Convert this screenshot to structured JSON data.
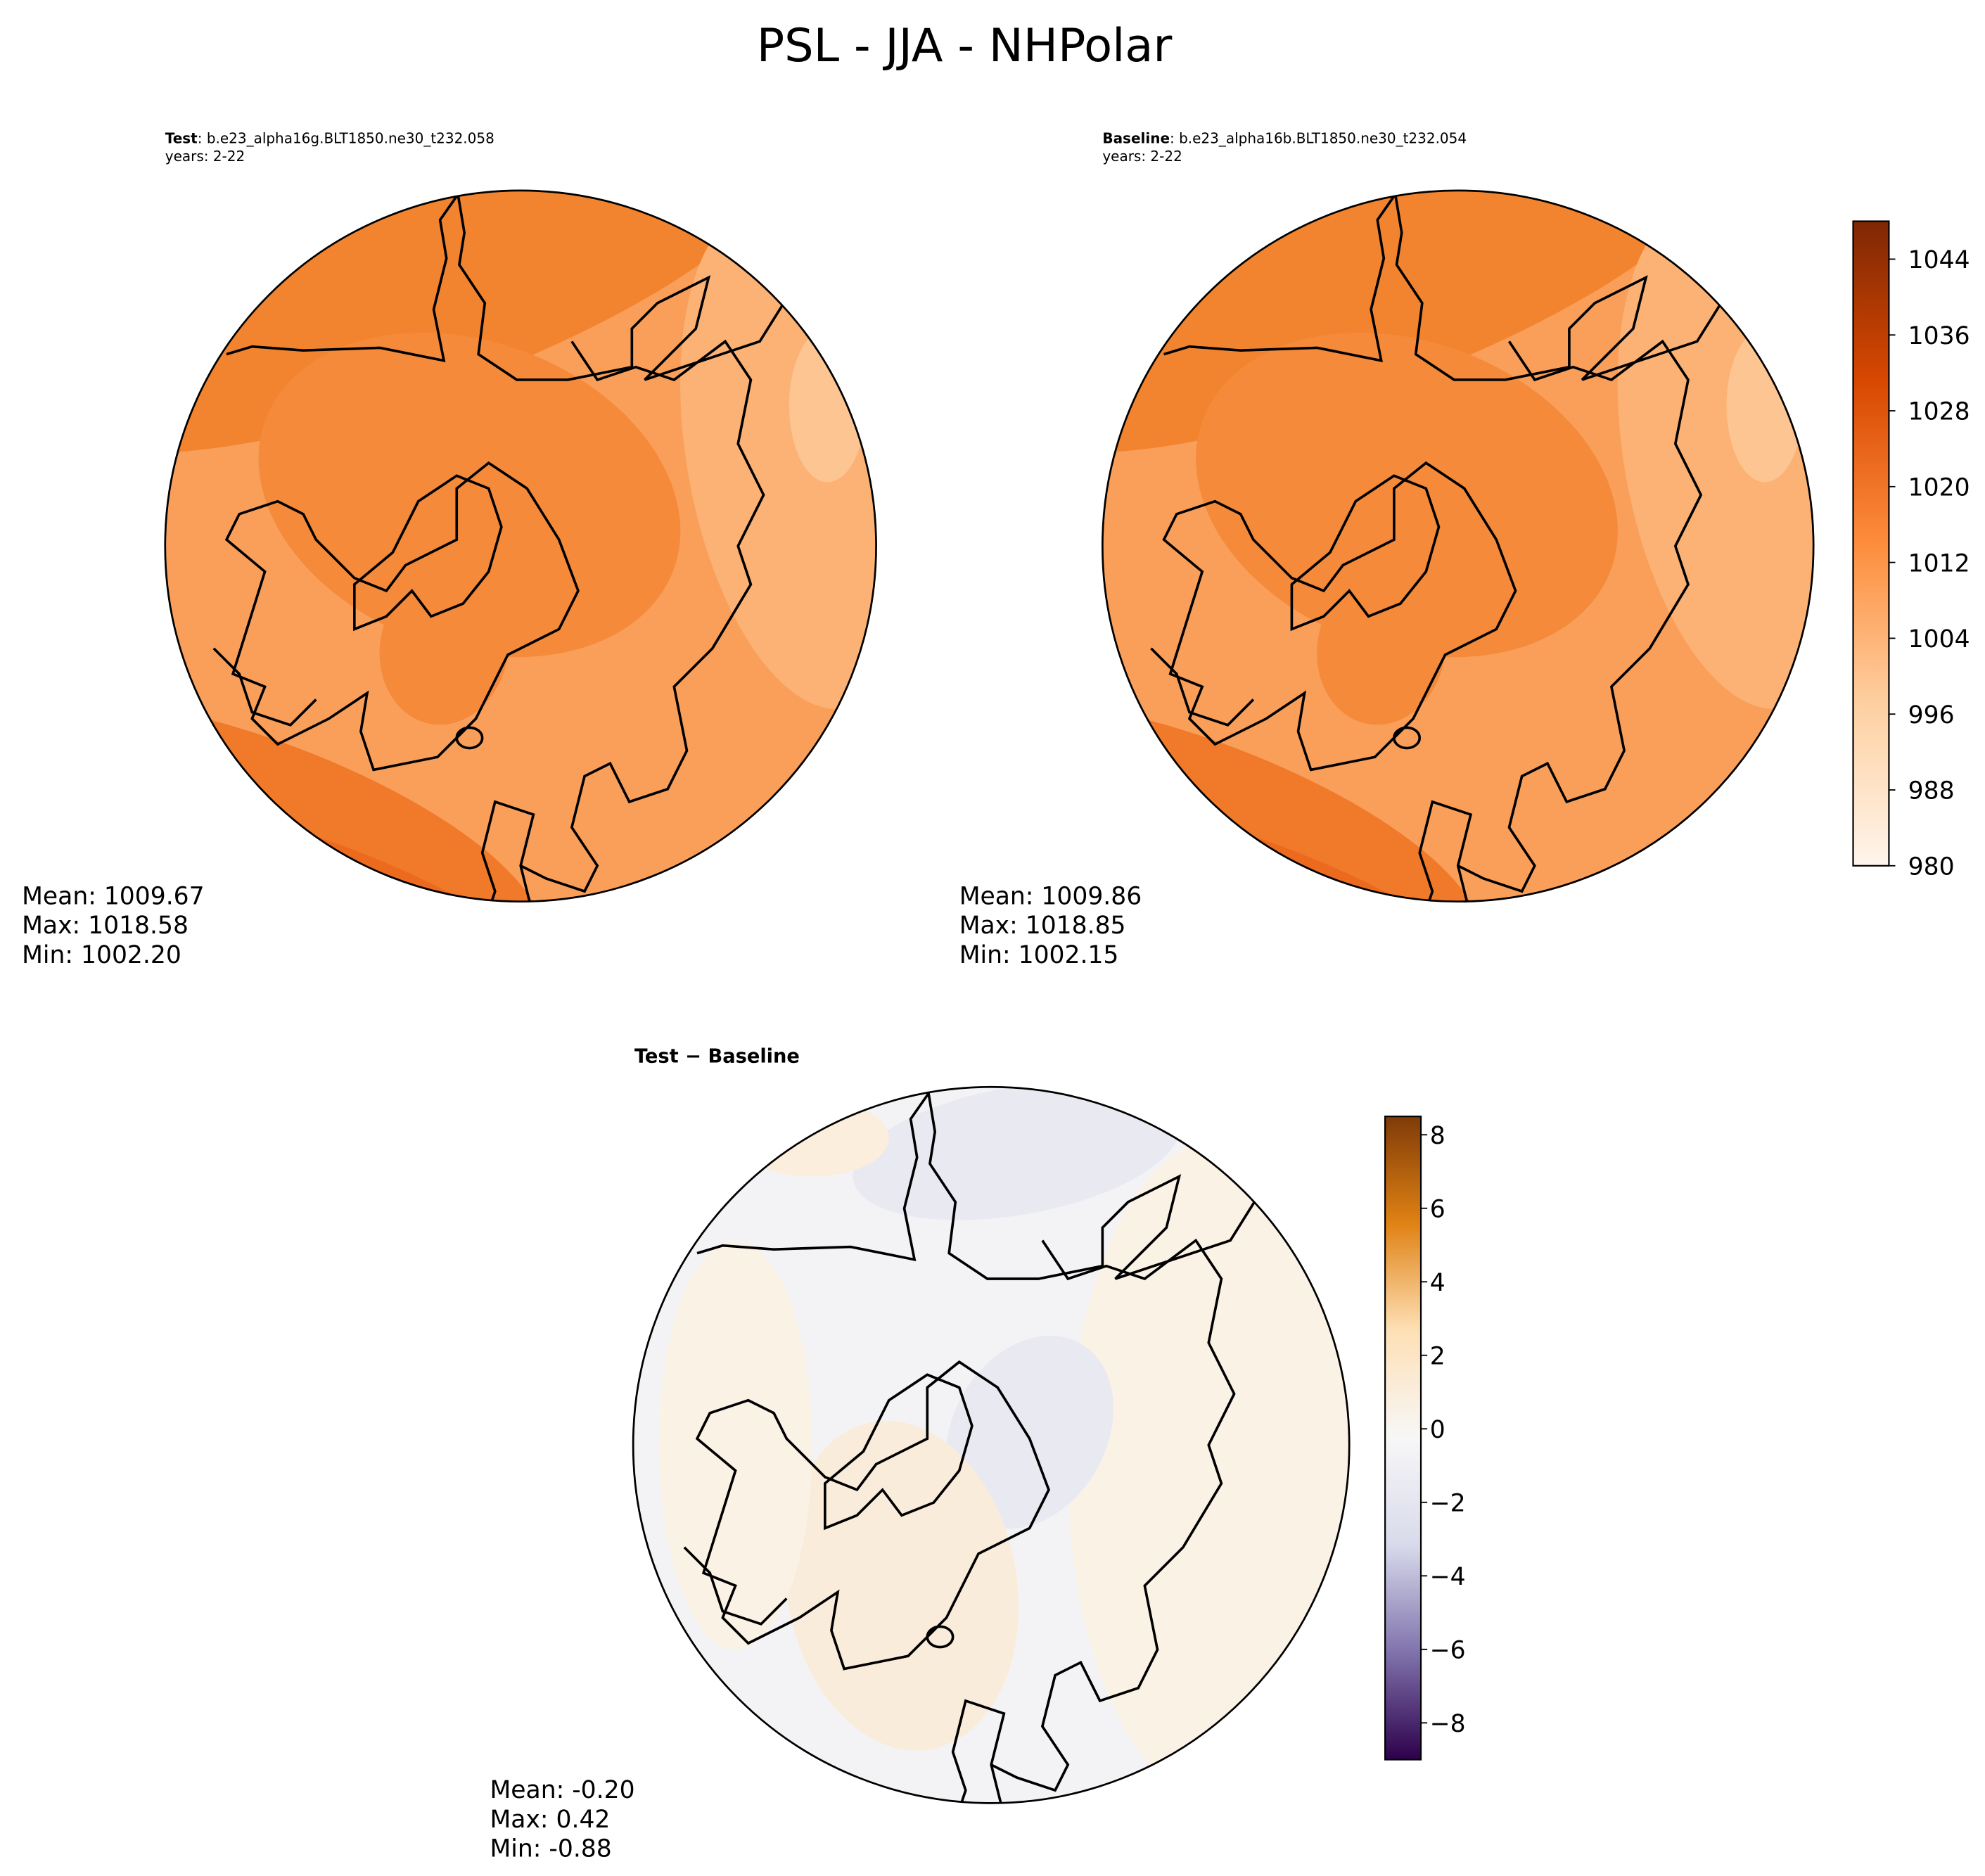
{
  "title": "PSL - JJA - NHPolar",
  "chart_data": [
    {
      "type": "map",
      "title_bold": "Test",
      "title": ": b.e23_alpha16g.BLT1850.ne30_t232.058",
      "subtitle": "years: 2-22",
      "stats": [
        "Mean: 1009.67",
        "Max: 1018.58",
        "Min: 1002.20"
      ]
    },
    {
      "type": "map",
      "title_bold": "Baseline",
      "title": ": b.e23_alpha16b.BLT1850.ne30_t232.054",
      "subtitle": "years: 2-22",
      "stats": [
        "Mean: 1009.86",
        "Max: 1018.85",
        "Min: 1002.15"
      ],
      "colorbar": {
        "ylim": [
          980,
          1048
        ],
        "yticks": [
          980,
          988,
          996,
          1004,
          1012,
          1020,
          1028,
          1036,
          1044
        ],
        "cmap": [
          "#fff5eb",
          "#fdd0a2",
          "#fd8d3c",
          "#d94801",
          "#7f2704"
        ]
      }
    },
    {
      "type": "map",
      "title_bold": "Test − Baseline",
      "stats": [
        "Mean: -0.20",
        "Max:  0.42",
        "Min: -0.88"
      ],
      "colorbar": {
        "ylim": [
          -9,
          8.5
        ],
        "yticks": [
          {
            "value": -8,
            "label": "−8"
          },
          {
            "value": -6,
            "label": "−6"
          },
          {
            "value": -4,
            "label": "−4"
          },
          {
            "value": -2,
            "label": "−2"
          },
          0,
          2,
          4,
          6,
          8
        ],
        "cmap": [
          "#2d004b",
          "#8073ac",
          "#d8daeb",
          "#f7f7f7",
          "#fee0b6",
          "#e08214",
          "#7f3b08"
        ]
      }
    }
  ]
}
